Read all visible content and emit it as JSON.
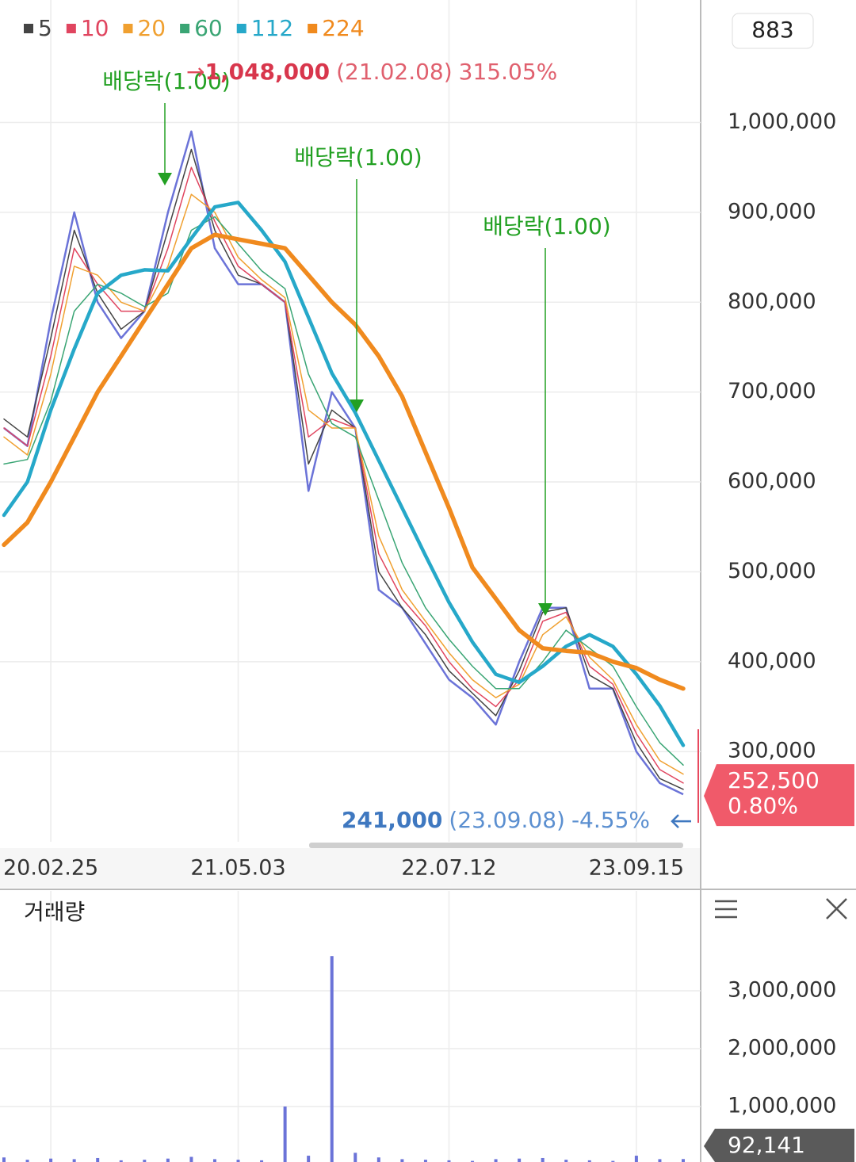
{
  "indicator_value": "883",
  "chart_data": [
    {
      "type": "line",
      "categories": [
        null,
        null,
        "20.02.25",
        null,
        null,
        null,
        null,
        null,
        null,
        null,
        "21.05.03",
        null,
        null,
        null,
        null,
        null,
        null,
        null,
        null,
        "22.07.12",
        null,
        null,
        null,
        null,
        null,
        null,
        null,
        "23.09.15",
        null,
        null
      ],
      "price": {
        "color": "#6b73d8",
        "values": [
          660000,
          640000,
          780000,
          900000,
          800000,
          760000,
          790000,
          900000,
          990000,
          860000,
          820000,
          820000,
          800000,
          590000,
          700000,
          660000,
          480000,
          460000,
          420000,
          380000,
          360000,
          330000,
          400000,
          460000,
          460000,
          370000,
          370000,
          300000,
          265000,
          252500
        ]
      },
      "series": [
        {
          "name": "5",
          "color": "#444444",
          "values": [
            670000,
            650000,
            760000,
            880000,
            810000,
            770000,
            790000,
            880000,
            970000,
            880000,
            830000,
            820000,
            800000,
            620000,
            680000,
            660000,
            500000,
            460000,
            430000,
            390000,
            365000,
            340000,
            390000,
            455000,
            460000,
            385000,
            370000,
            310000,
            270000,
            258000
          ]
        },
        {
          "name": "10",
          "color": "#e0455f",
          "values": [
            660000,
            640000,
            740000,
            860000,
            820000,
            790000,
            790000,
            860000,
            950000,
            890000,
            840000,
            820000,
            800000,
            650000,
            670000,
            660000,
            520000,
            470000,
            440000,
            400000,
            370000,
            350000,
            380000,
            445000,
            455000,
            395000,
            375000,
            320000,
            280000,
            265000
          ]
        },
        {
          "name": "20",
          "color": "#f0a030",
          "values": [
            650000,
            630000,
            720000,
            840000,
            830000,
            800000,
            790000,
            840000,
            920000,
            900000,
            850000,
            825000,
            805000,
            680000,
            660000,
            660000,
            540000,
            480000,
            445000,
            410000,
            380000,
            360000,
            375000,
            430000,
            450000,
            405000,
            380000,
            330000,
            290000,
            275000
          ]
        },
        {
          "name": "60",
          "color": "#3aa574",
          "values": [
            620000,
            625000,
            690000,
            790000,
            820000,
            810000,
            795000,
            810000,
            880000,
            895000,
            865000,
            835000,
            815000,
            720000,
            665000,
            650000,
            580000,
            510000,
            460000,
            425000,
            395000,
            370000,
            370000,
            400000,
            435000,
            415000,
            395000,
            350000,
            310000,
            285000
          ]
        },
        {
          "name": "112",
          "color": "#26a8c9",
          "values": [
            563000,
            600000,
            680000,
            748000,
            810000,
            830000,
            836000,
            835000,
            871000,
            906000,
            911000,
            880000,
            845000,
            783000,
            721000,
            677000,
            624000,
            571000,
            518000,
            466000,
            422000,
            386000,
            377000,
            395000,
            417000,
            430000,
            417000,
            386000,
            351000,
            307000
          ]
        },
        {
          "name": "224",
          "color": "#f08a1e",
          "values": [
            530000,
            555000,
            600000,
            650000,
            700000,
            740000,
            780000,
            820000,
            860000,
            875000,
            870000,
            865000,
            860000,
            830000,
            800000,
            775000,
            740000,
            695000,
            633000,
            571000,
            505000,
            470000,
            435000,
            415000,
            412000,
            410000,
            400000,
            393000,
            380000,
            370000
          ]
        }
      ],
      "ylim": [
        197000,
        1123000
      ],
      "yticks": [
        {
          "value": 300000,
          "label": "300,000"
        },
        {
          "value": 400000,
          "label": "400,000"
        },
        {
          "value": 500000,
          "label": "500,000"
        },
        {
          "value": 600000,
          "label": "600,000"
        },
        {
          "value": 700000,
          "label": "700,000"
        },
        {
          "value": 800000,
          "label": "800,000"
        },
        {
          "value": 900000,
          "label": "900,000"
        },
        {
          "value": 1000000,
          "label": "1,000,000"
        }
      ],
      "grid": true,
      "high": {
        "value": 1048000,
        "label": "1,048,000",
        "date": "(21.02.08)",
        "change": "315.05%"
      },
      "low": {
        "value": 241000,
        "label": "241,000",
        "date": "(23.09.08)",
        "change": "-4.55%"
      },
      "current": {
        "value": 252500,
        "label": "252,500",
        "change": "0.80%"
      },
      "annotations": [
        "배당락(1.00)",
        "배당락(1.00)",
        "배당락(1.00)"
      ]
    },
    {
      "type": "bar",
      "title": "거래량",
      "color": "#6b73d8",
      "values": [
        120000,
        80000,
        100000,
        90000,
        110000,
        70000,
        80000,
        100000,
        130000,
        90000,
        80000,
        70000,
        1000000,
        150000,
        3600000,
        200000,
        120000,
        90000,
        80000,
        70000,
        60000,
        90000,
        100000,
        110000,
        80000,
        70000,
        60000,
        150000,
        90000,
        92141
      ],
      "ylim": [
        0,
        4000000
      ],
      "yticks": [
        {
          "value": 1000000,
          "label": "1,000,000"
        },
        {
          "value": 2000000,
          "label": "2,000,000"
        },
        {
          "value": 3000000,
          "label": "3,000,000"
        }
      ],
      "grid": true,
      "current": {
        "value": 92141,
        "label": "92,141"
      }
    }
  ]
}
